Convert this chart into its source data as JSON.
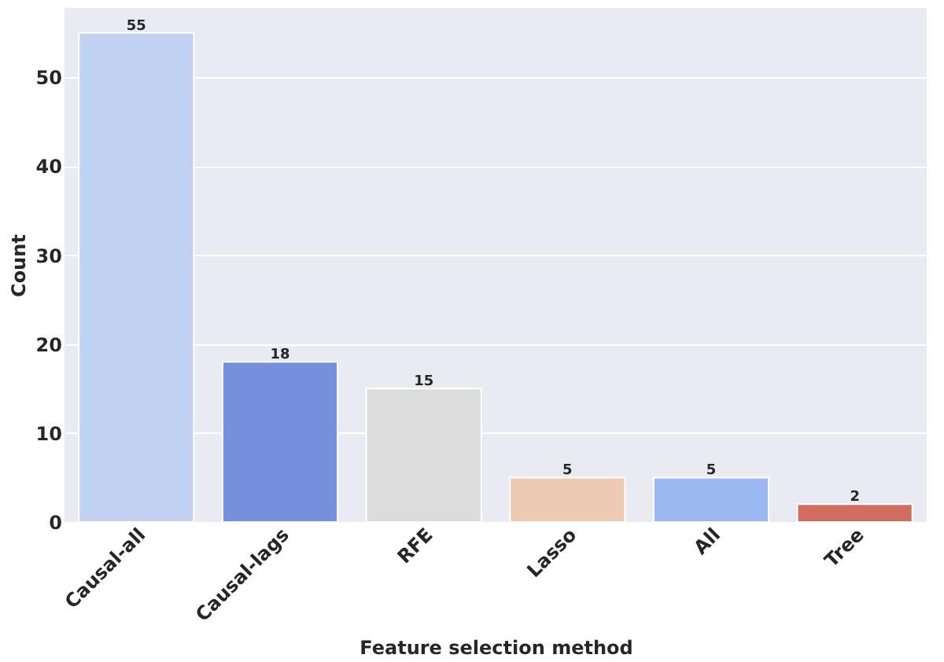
{
  "chart_data": {
    "type": "bar",
    "xlabel": "Feature selection method",
    "ylabel": "Count",
    "categories": [
      "Causal-all",
      "Causal-lags",
      "RFE",
      "Lasso",
      "All",
      "Tree"
    ],
    "values": [
      55,
      18,
      15,
      5,
      5,
      2
    ],
    "colors": [
      "#c0d1f1",
      "#7590dd",
      "#dcdcdc",
      "#eecab5",
      "#9bb8f2",
      "#d16d5e"
    ],
    "ylim": [
      0,
      57.8
    ],
    "yticks": [
      0,
      10,
      20,
      30,
      40,
      50
    ],
    "grid": "y",
    "data_labels": true
  }
}
